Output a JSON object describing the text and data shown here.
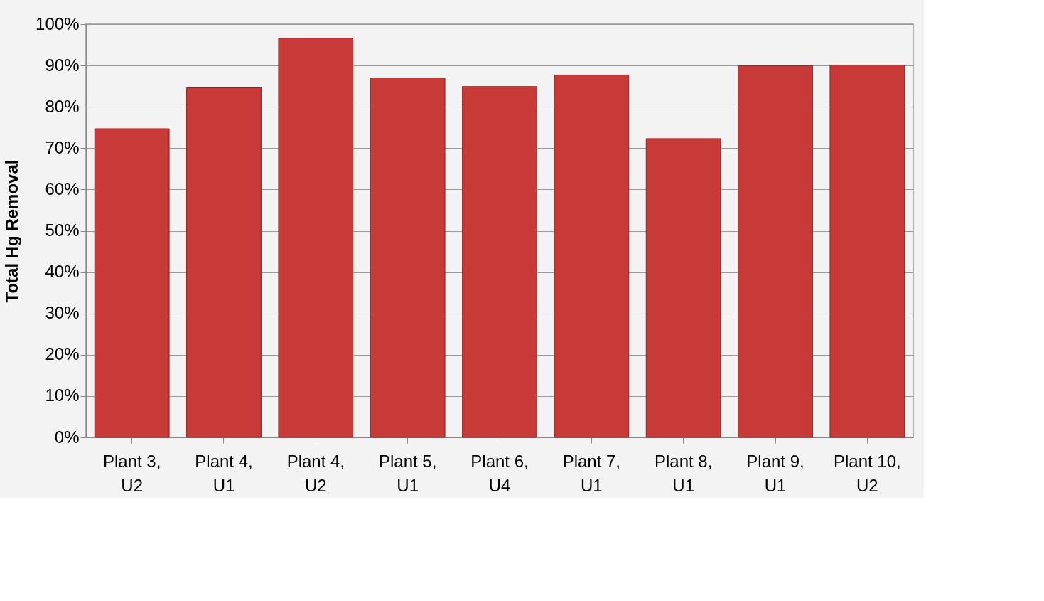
{
  "chart_data": {
    "type": "bar",
    "ylabel": "Total Hg Removal",
    "categories": [
      "Plant 3,\nU2",
      "Plant 4,\nU1",
      "Plant 4,\nU2",
      "Plant 5,\nU1",
      "Plant 6,\nU4",
      "Plant 7,\nU1",
      "Plant 8,\nU1",
      "Plant 9,\nU1",
      "Plant 10,\nU2"
    ],
    "values": [
      74.7,
      84.6,
      96.6,
      87.0,
      84.9,
      87.7,
      72.3,
      89.9,
      90.1
    ],
    "color": "#c83a38",
    "ylim": [
      0,
      100
    ],
    "yticks": [
      {
        "value": 0,
        "label": "0%"
      },
      {
        "value": 10,
        "label": "10%"
      },
      {
        "value": 20,
        "label": "20%"
      },
      {
        "value": 30,
        "label": "30%"
      },
      {
        "value": 40,
        "label": "40%"
      },
      {
        "value": 50,
        "label": "50%"
      },
      {
        "value": 60,
        "label": "60%"
      },
      {
        "value": 70,
        "label": "70%"
      },
      {
        "value": 80,
        "label": "80%"
      },
      {
        "value": 90,
        "label": "90%"
      },
      {
        "value": 100,
        "label": "100%"
      }
    ],
    "grid": "y"
  }
}
